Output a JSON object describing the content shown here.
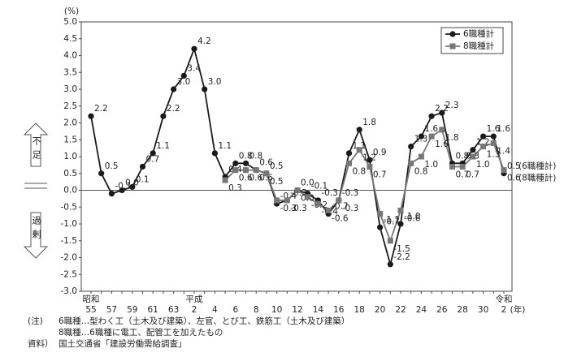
{
  "chart_data": {
    "type": "line",
    "y_unit": "(%)",
    "x_unit": "(年)",
    "categories": [
      "55",
      null,
      "57",
      null,
      "59",
      null,
      "61",
      null,
      "63",
      null,
      "2",
      null,
      "4",
      null,
      "6",
      null,
      "8",
      null,
      "10",
      null,
      "12",
      null,
      "14",
      null,
      "16",
      null,
      "18",
      null,
      "20",
      null,
      "22",
      null,
      "24",
      null,
      "26",
      null,
      "28",
      null,
      "30",
      null,
      "2"
    ],
    "era_labels": [
      "昭和",
      null,
      null,
      null,
      null,
      null,
      null,
      null,
      null,
      null,
      "平成",
      null,
      null,
      null,
      null,
      null,
      null,
      null,
      null,
      null,
      null,
      null,
      null,
      null,
      null,
      null,
      null,
      null,
      null,
      null,
      null,
      null,
      null,
      null,
      null,
      null,
      null,
      null,
      null,
      null,
      "令和"
    ],
    "series": [
      {
        "name": "6職種計",
        "color": "#1a1a1a",
        "marker": "circle",
        "values": [
          2.2,
          0.5,
          -0.1,
          0.0,
          0.1,
          0.7,
          1.1,
          2.2,
          3.0,
          3.4,
          4.2,
          3.0,
          1.1,
          0.4,
          0.8,
          0.8,
          0.6,
          0.5,
          -0.4,
          -0.3,
          0.0,
          -0.1,
          -0.3,
          -0.7,
          -0.3,
          1.1,
          1.8,
          0.9,
          -1.1,
          -2.2,
          -1.0,
          1.3,
          1.6,
          2.2,
          2.3,
          0.8,
          0.8,
          1.2,
          1.6,
          1.6,
          0.5
        ],
        "value_labels": [
          "2.2",
          "0.5",
          "-0.1",
          "0.0",
          "0.1",
          "0.7",
          "1.1",
          "2.2",
          "3.0",
          "3.4",
          "4.2",
          "3.0",
          "1.1",
          "0.4",
          "0.8",
          "0.8",
          "0.6",
          "0.5",
          "-0.4",
          "-0.3",
          "0.0",
          "-0.1",
          "-0.3",
          "-0.7",
          "-0.3",
          "1.1",
          "1.8",
          "0.9",
          "-1.1",
          "-2.2",
          "-1.0",
          "1.3",
          "1.6",
          "2.2",
          "2.3",
          "0.8",
          "0.8",
          "1.2",
          "1.6",
          "1.6",
          "0.5"
        ]
      },
      {
        "name": "8職種計",
        "color": "#777777",
        "marker": "square",
        "values": [
          null,
          null,
          null,
          null,
          null,
          null,
          null,
          null,
          null,
          null,
          null,
          null,
          null,
          0.3,
          0.6,
          0.6,
          0.6,
          0.5,
          -0.3,
          -0.3,
          0.0,
          -0.2,
          -0.4,
          -0.6,
          -0.3,
          0.8,
          1.2,
          0.7,
          -0.7,
          -1.5,
          -0.6,
          0.8,
          1.0,
          1.6,
          1.8,
          0.7,
          0.7,
          1.0,
          1.3,
          1.4,
          0.6
        ],
        "value_labels": [
          null,
          null,
          null,
          null,
          null,
          null,
          null,
          null,
          null,
          null,
          null,
          null,
          null,
          "0.3",
          "0.6",
          "0.6",
          "0.6",
          "0.5",
          "-0.3",
          "-0.3",
          "0.0",
          "-0.2",
          "-0.4",
          "-0.6",
          "-0.3",
          "0.8",
          "1.2",
          "0.7",
          "-0.7",
          "-1.5",
          "-0.6",
          "0.8",
          "1.0",
          "1.6",
          "1.8",
          "0.7",
          "0.7",
          "1.0",
          "1.3",
          "1.4",
          "0.6"
        ]
      }
    ],
    "end_annotations": [
      "(6職種計)",
      "(8職種計)"
    ],
    "side_labels": [
      "不足",
      "過剰"
    ],
    "ylim": [
      -3.0,
      5.0
    ],
    "yticks": [
      {
        "value": 5.0,
        "label": "5.0"
      },
      {
        "value": 4.5,
        "label": "4.5"
      },
      {
        "value": 4.0,
        "label": "4.0"
      },
      {
        "value": 3.5,
        "label": "3.5"
      },
      {
        "value": 3.0,
        "label": "3.0"
      },
      {
        "value": 2.5,
        "label": "2.5"
      },
      {
        "value": 2.0,
        "label": "2.0"
      },
      {
        "value": 1.5,
        "label": "1.5"
      },
      {
        "value": 1.0,
        "label": "1.0"
      },
      {
        "value": 0.5,
        "label": "0.5"
      },
      {
        "value": 0.0,
        "label": "0.0"
      },
      {
        "value": -0.5,
        "label": "-0.5"
      },
      {
        "value": -1.0,
        "label": "-1.0"
      },
      {
        "value": -1.5,
        "label": "-1.5"
      },
      {
        "value": -2.0,
        "label": "-2.0"
      },
      {
        "value": -2.5,
        "label": "-2.5"
      },
      {
        "value": -3.0,
        "label": "-3.0"
      }
    ],
    "legend": "upper right",
    "notes": [
      {
        "label": "(注)",
        "text": "6職種…型わく工（土木及び建築）、左官、とび工、鉄筋工（土木及び建築）"
      },
      {
        "text": "8職種…6職種に電工、配管工を加えたもの"
      },
      {
        "label": "資料）",
        "text": "国土交通省「建設労働需給調査」"
      }
    ]
  }
}
